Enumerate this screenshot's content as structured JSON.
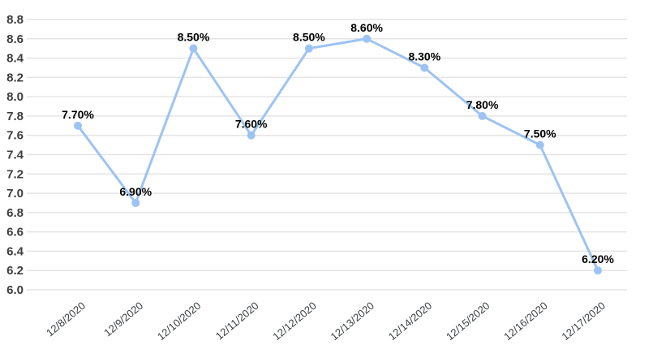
{
  "chart_data": {
    "type": "line",
    "title": "",
    "xlabel": "",
    "ylabel": "",
    "categories": [
      "12/8/2020",
      "12/9/2020",
      "12/10/2020",
      "12/11/2020",
      "12/12/2020",
      "12/13/2020",
      "12/14/2020",
      "12/15/2020",
      "12/16/2020",
      "12/17/2020"
    ],
    "series": [
      {
        "name": "rate",
        "values": [
          7.7,
          6.9,
          8.5,
          7.6,
          8.5,
          8.6,
          8.3,
          7.8,
          7.5,
          6.2
        ],
        "point_labels": [
          "7.70%",
          "6.90%",
          "8.50%",
          "7.60%",
          "8.50%",
          "8.60%",
          "8.30%",
          "7.80%",
          "7.50%",
          "6.20%"
        ]
      }
    ],
    "ylim": [
      6.0,
      8.8
    ],
    "ytick_step": 0.2,
    "ytick_labels": [
      "6.0",
      "6.2",
      "6.4",
      "6.6",
      "6.8",
      "7.0",
      "7.2",
      "7.4",
      "7.6",
      "7.8",
      "8.0",
      "8.2",
      "8.4",
      "8.6",
      "8.8"
    ],
    "grid": true,
    "legend_position": "none",
    "colors": {
      "line": "#9dc3f3",
      "marker": "#9dc3f3",
      "point_label": "#000000",
      "y_axis_text": "#3d3d3d",
      "x_axis_text": "#3c4043",
      "gridline": "#e4e4e4",
      "background": "#ffffff"
    }
  }
}
